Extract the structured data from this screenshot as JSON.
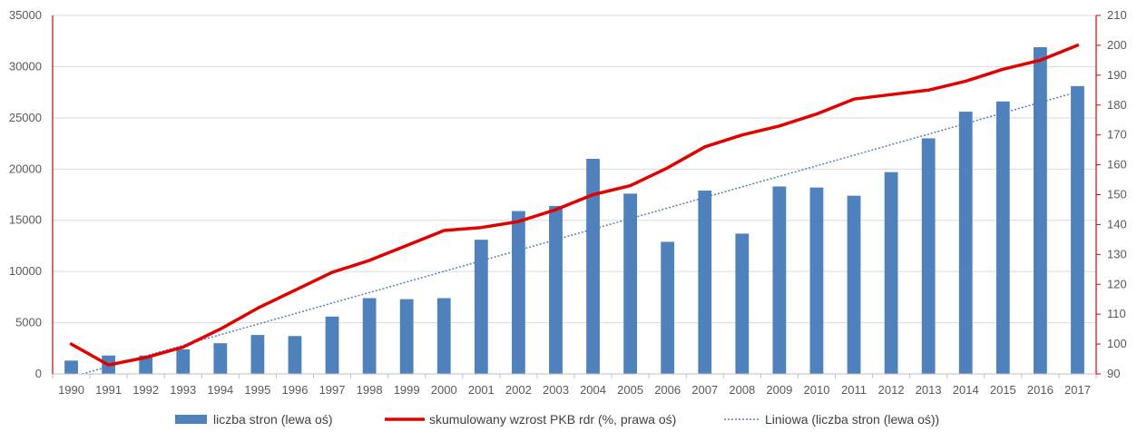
{
  "chart_data": {
    "type": "bar",
    "title": "",
    "xlabel": "",
    "ylabel": "",
    "categories": [
      "1990",
      "1991",
      "1992",
      "1993",
      "1994",
      "1995",
      "1996",
      "1997",
      "1998",
      "1999",
      "2000",
      "2001",
      "2002",
      "2003",
      "2004",
      "2005",
      "2006",
      "2007",
      "2008",
      "2009",
      "2010",
      "2011",
      "2012",
      "2013",
      "2014",
      "2015",
      "2016",
      "2017"
    ],
    "series": [
      {
        "name": "liczba stron (lewa oś)",
        "type": "bar",
        "axis": "left",
        "color": "#4f81bd",
        "values": [
          1300,
          1800,
          1800,
          2400,
          3000,
          3800,
          3700,
          5600,
          7400,
          7300,
          7400,
          13100,
          15900,
          16400,
          21000,
          17600,
          12900,
          17900,
          13700,
          18300,
          18200,
          17400,
          19700,
          23000,
          25600,
          26600,
          31900,
          28100
        ]
      },
      {
        "name": "skumulowany wzrost PKB rdr (%, prawa oś)",
        "type": "line",
        "axis": "right",
        "color": "#e00000",
        "values": [
          100,
          93,
          95.5,
          99,
          105,
          112,
          118,
          124,
          128,
          133,
          138,
          139,
          141,
          145,
          150,
          153,
          159,
          166,
          170,
          173,
          177,
          182,
          183.5,
          185,
          188,
          192,
          195,
          200
        ]
      },
      {
        "name": "Liniowa (liczba stron (lewa oś))",
        "type": "trendline",
        "axis": "left",
        "color": "#4f81bd",
        "values": [
          -300,
          731,
          1762,
          2793,
          3824,
          4855,
          5886,
          6917,
          7948,
          8979,
          10010,
          11041,
          12072,
          13103,
          14134,
          15165,
          16196,
          17227,
          18258,
          19289,
          20320,
          21351,
          22382,
          23413,
          24444,
          25475,
          26506,
          27537
        ]
      }
    ],
    "left_axis": {
      "ylim": [
        0,
        35000
      ],
      "ticks": [
        "0",
        "5000",
        "10000",
        "15000",
        "20000",
        "25000",
        "30000",
        "35000"
      ]
    },
    "right_axis": {
      "ylim": [
        90,
        210
      ],
      "ticks": [
        "90",
        "100",
        "110",
        "120",
        "130",
        "140",
        "150",
        "160",
        "170",
        "180",
        "190",
        "200",
        "210"
      ],
      "color": "#e00000"
    },
    "grid": true,
    "legend_placement": "bottom"
  },
  "legend": {
    "items": [
      {
        "label": "liczba stron (lewa oś)"
      },
      {
        "label": "skumulowany wzrost PKB rdr (%, prawa oś)"
      },
      {
        "label": "Liniowa (liczba stron (lewa oś))"
      }
    ]
  }
}
